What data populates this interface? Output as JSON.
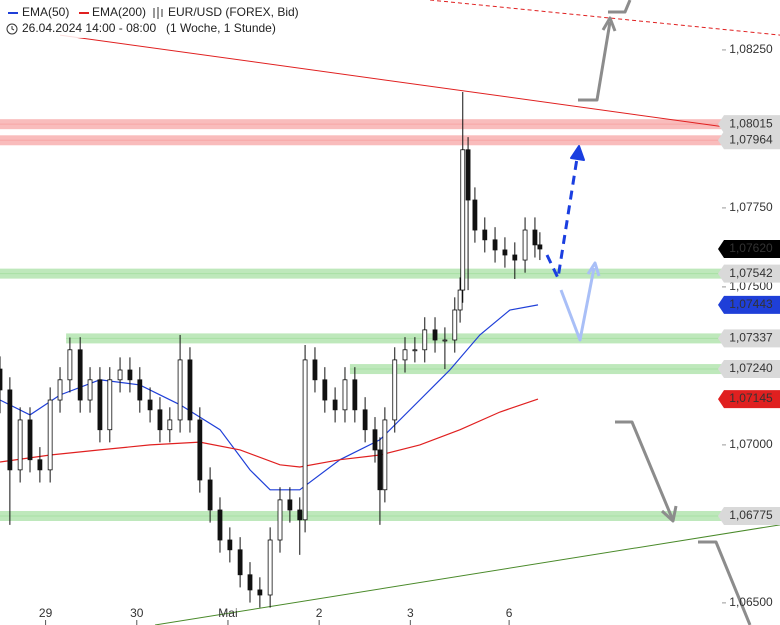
{
  "chart_data": {
    "type": "candlestick",
    "legend": [
      {
        "name": "EMA(50)",
        "color": "#1f3fd8"
      },
      {
        "name": "EMA(200)",
        "color": "#e02020"
      },
      {
        "name": "EUR/USD (FOREX, Bid)"
      }
    ],
    "period": "26.04.2024 14:00 - 08:00",
    "interval": "(1 Woche, 1 Stunde)",
    "xlim": [
      0,
      205.3
    ],
    "ylim": [
      1.0643,
      1.08408
    ],
    "xticks": [
      {
        "value": 12,
        "label": "29"
      },
      {
        "value": 36,
        "label": "30"
      },
      {
        "value": 60,
        "label": "Mai"
      },
      {
        "value": 84,
        "label": "2"
      },
      {
        "value": 108,
        "label": "3"
      },
      {
        "value": 134,
        "label": "6"
      }
    ],
    "yticks": [
      {
        "value": 1.0825,
        "label": "1,08250"
      },
      {
        "value": 1.0775,
        "label": "1,07750"
      },
      {
        "value": 1.075,
        "label": "1,07500"
      },
      {
        "value": 1.07,
        "label": "1,07000"
      },
      {
        "value": 1.065,
        "label": "1,06500"
      }
    ],
    "grid": false,
    "up_color": "#ffffff",
    "down_color": "#111111",
    "x": [
      0,
      2.6,
      5.3,
      7.9,
      10.5,
      13.2,
      15.8,
      18.4,
      21.1,
      23.7,
      26.3,
      28.9,
      31.6,
      34.2,
      36.8,
      39.5,
      42.1,
      44.7,
      47.4,
      50,
      52.6,
      55.3,
      57.9,
      60.5,
      63.2,
      65.8,
      68.4,
      71.1,
      73.7,
      76.3,
      78.9,
      80.3,
      82.9,
      85.5,
      88.2,
      90.8,
      93.4,
      96.1,
      98.7,
      100,
      101.3,
      103.9,
      106.6,
      109.2,
      111.8,
      114.5,
      117.1,
      119.7,
      121.1,
      121.8,
      123.2,
      125,
      127.6,
      130.3,
      132.9,
      135.5,
      138.2,
      140.8,
      142.1
    ],
    "open": [
      1.0724,
      1.07174,
      1.06921,
      1.07079,
      1.06953,
      1.06921,
      1.07142,
      1.07206,
      1.07301,
      1.07142,
      1.07206,
      1.07048,
      1.07206,
      1.07237,
      1.07206,
      1.07142,
      1.07111,
      1.07048,
      1.07079,
      1.07269,
      1.07079,
      1.06889,
      1.06794,
      1.06699,
      1.06668,
      1.06589,
      1.06541,
      1.06525,
      1.06699,
      1.06826,
      1.06794,
      1.06763,
      1.07269,
      1.07206,
      1.07142,
      1.07111,
      1.07206,
      1.07111,
      1.07048,
      1.06984,
      1.06858,
      1.07079,
      1.07269,
      1.07301,
      1.07301,
      1.07364,
      1.07332,
      1.07332,
      1.07427,
      1.0749,
      1.07934,
      1.07775,
      1.0768,
      1.07649,
      1.07617,
      1.07601,
      1.07585,
      1.0768,
      1.07633
    ],
    "high": [
      1.0728,
      1.07214,
      1.07119,
      1.07119,
      1.06993,
      1.07182,
      1.07246,
      1.0734,
      1.07341,
      1.07246,
      1.07246,
      1.07246,
      1.07277,
      1.07277,
      1.07246,
      1.07182,
      1.07151,
      1.07119,
      1.07348,
      1.07309,
      1.07119,
      1.06929,
      1.06834,
      1.06739,
      1.06708,
      1.06629,
      1.06581,
      1.06739,
      1.06866,
      1.06866,
      1.06834,
      1.07316,
      1.07309,
      1.07246,
      1.07182,
      1.07246,
      1.07246,
      1.07151,
      1.07088,
      1.07024,
      1.07119,
      1.07309,
      1.07341,
      1.07341,
      1.07404,
      1.07404,
      1.07372,
      1.07467,
      1.0753,
      1.08117,
      1.07974,
      1.07815,
      1.0772,
      1.07689,
      1.07657,
      1.07641,
      1.0772,
      1.0772,
      1.07673
    ],
    "low": [
      1.071,
      1.06747,
      1.06881,
      1.06913,
      1.06881,
      1.06881,
      1.07102,
      1.07166,
      1.07102,
      1.07102,
      1.07008,
      1.07008,
      1.07166,
      1.07166,
      1.07102,
      1.07071,
      1.07008,
      1.07008,
      1.07039,
      1.07039,
      1.06849,
      1.06754,
      1.06659,
      1.06628,
      1.06549,
      1.06501,
      1.06485,
      1.06485,
      1.06659,
      1.06754,
      1.06652,
      1.06723,
      1.07166,
      1.07102,
      1.07071,
      1.07071,
      1.07071,
      1.07008,
      1.06944,
      1.06747,
      1.06818,
      1.07039,
      1.07229,
      1.07261,
      1.07261,
      1.07292,
      1.0724,
      1.07292,
      1.07387,
      1.0745,
      1.0749,
      1.0764,
      1.07609,
      1.07577,
      1.07561,
      1.07525,
      1.07545,
      1.07593,
      1.07585
    ],
    "close": [
      1.07174,
      1.06921,
      1.07079,
      1.06953,
      1.06921,
      1.07142,
      1.07206,
      1.07301,
      1.07142,
      1.07206,
      1.07048,
      1.07206,
      1.07237,
      1.07206,
      1.07142,
      1.07111,
      1.07048,
      1.07079,
      1.07269,
      1.07079,
      1.06889,
      1.06794,
      1.06699,
      1.06668,
      1.06589,
      1.06541,
      1.06525,
      1.06699,
      1.06826,
      1.06794,
      1.06763,
      1.07269,
      1.07206,
      1.07142,
      1.07111,
      1.07206,
      1.07111,
      1.07048,
      1.06984,
      1.06858,
      1.07079,
      1.07269,
      1.07301,
      1.07301,
      1.07364,
      1.07332,
      1.07332,
      1.07427,
      1.0749,
      1.07934,
      1.07775,
      1.0768,
      1.07649,
      1.07617,
      1.07601,
      1.07585,
      1.0768,
      1.07633,
      1.0762
    ],
    "last_price": {
      "value": 1.0762,
      "label": "1,07620",
      "color": "#000000"
    },
    "series": [
      {
        "name": "EMA(50)",
        "color": "#1f3fd8",
        "x": [
          0,
          7.9,
          15.8,
          26.3,
          36.8,
          47.4,
          57.9,
          65.8,
          71.1,
          78.9,
          89.5,
          100,
          110.5,
          118.4,
          126.3,
          134.2,
          141.6
        ],
        "values": [
          1.07142,
          1.07095,
          1.07158,
          1.07206,
          1.0719,
          1.07127,
          1.07048,
          1.06921,
          1.06858,
          1.06858,
          1.06953,
          1.07016,
          1.07142,
          1.07237,
          1.07348,
          1.07427,
          1.07443
        ],
        "last_label": "1,07443"
      },
      {
        "name": "EMA(200)",
        "color": "#e02020",
        "x": [
          0,
          13.2,
          26.3,
          39.5,
          52.6,
          63.2,
          73.7,
          78.9,
          89.5,
          100,
          110.5,
          121.1,
          131.6,
          141.6
        ],
        "values": [
          1.06946,
          1.06968,
          1.06984,
          1.07,
          1.07009,
          1.06984,
          1.06937,
          1.0693,
          1.06953,
          1.06968,
          1.07,
          1.07048,
          1.07104,
          1.07145
        ],
        "last_label": "1,07145"
      }
    ],
    "levels": [
      {
        "value": 1.08015,
        "label": "1,08015",
        "color": "#f7a6a6",
        "from": 0
      },
      {
        "value": 1.07964,
        "label": "1,07964",
        "color": "#f7a6a6",
        "from": 0
      },
      {
        "value": 1.07542,
        "label": "1,07542",
        "color": "#a8e0a4",
        "from": 0
      },
      {
        "value": 1.07337,
        "label": "1,07337",
        "color": "#a8e0a4",
        "from": 17.4
      },
      {
        "value": 1.0724,
        "label": "1,07240",
        "color": "#a8e0a4",
        "from": 92.1
      },
      {
        "value": 1.06775,
        "label": "1,06775",
        "color": "#a8e0a4",
        "from": 0
      }
    ],
    "trendlines": [
      {
        "x": [
          15.8,
          190.8
        ],
        "values": [
          1.08297,
          1.08006
        ],
        "color": "#e02020",
        "dashed": false
      },
      {
        "x": [
          113.2,
          205.3
        ],
        "values": [
          1.08408,
          1.08297
        ],
        "color": "#e02020",
        "dashed": true
      },
      {
        "x": [
          40.8,
          205.3
        ],
        "values": [
          1.0643,
          1.06747
        ],
        "color": "#4a8a2a",
        "dashed": false
      }
    ]
  }
}
